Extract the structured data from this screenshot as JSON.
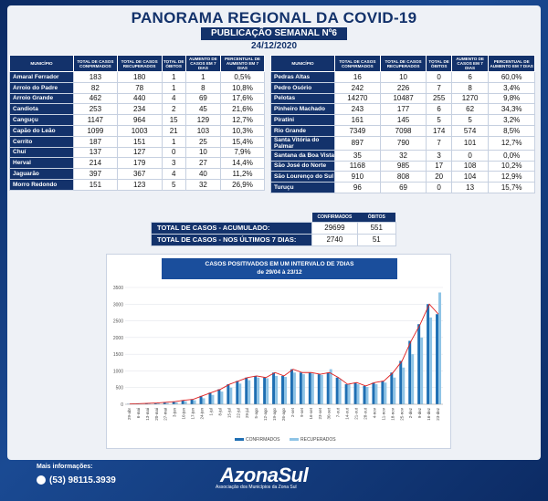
{
  "header": {
    "title": "PANORAMA REGIONAL DA COVID-19",
    "subtitle": "PUBLICAÇÃO SEMANAL Nº6",
    "date": "24/12/2020"
  },
  "columns": [
    "MUNICÍPIO",
    "TOTAL DE CASOS CONFIRMADOS",
    "TOTAL DE CASOS RECUPERADOS",
    "TOTAL DE ÓBITOS",
    "AUMENTO DE CASOS EM 7 DIAS",
    "PERCENTUAL DE AUMENTO EM 7 DIAS"
  ],
  "left_rows": [
    [
      "Amaral Ferrador",
      "183",
      "180",
      "1",
      "1",
      "0,5%"
    ],
    [
      "Arroio do Padre",
      "82",
      "78",
      "1",
      "8",
      "10,8%"
    ],
    [
      "Arroio Grande",
      "462",
      "440",
      "4",
      "69",
      "17,6%"
    ],
    [
      "Candiota",
      "253",
      "234",
      "2",
      "45",
      "21,6%"
    ],
    [
      "Canguçu",
      "1147",
      "964",
      "15",
      "129",
      "12,7%"
    ],
    [
      "Capão do Leão",
      "1099",
      "1003",
      "21",
      "103",
      "10,3%"
    ],
    [
      "Cerrito",
      "187",
      "151",
      "1",
      "25",
      "15,4%"
    ],
    [
      "Chuí",
      "137",
      "127",
      "0",
      "10",
      "7,9%"
    ],
    [
      "Herval",
      "214",
      "179",
      "3",
      "27",
      "14,4%"
    ],
    [
      "Jaguarão",
      "397",
      "367",
      "4",
      "40",
      "11,2%"
    ],
    [
      "Morro Redondo",
      "151",
      "123",
      "5",
      "32",
      "26,9%"
    ]
  ],
  "right_rows": [
    [
      "Pedras Altas",
      "16",
      "10",
      "0",
      "6",
      "60,0%"
    ],
    [
      "Pedro Osório",
      "242",
      "226",
      "7",
      "8",
      "3,4%"
    ],
    [
      "Pelotas",
      "14270",
      "10487",
      "255",
      "1270",
      "9,8%"
    ],
    [
      "Pinheiro Machado",
      "243",
      "177",
      "6",
      "62",
      "34,3%"
    ],
    [
      "Piratini",
      "161",
      "145",
      "5",
      "5",
      "3,2%"
    ],
    [
      "Rio Grande",
      "7349",
      "7098",
      "174",
      "574",
      "8,5%"
    ],
    [
      "Santa Vitória do Palmar",
      "897",
      "790",
      "7",
      "101",
      "12,7%"
    ],
    [
      "Santana da Boa Vista",
      "35",
      "32",
      "3",
      "0",
      "0,0%"
    ],
    [
      "São José do Norte",
      "1168",
      "985",
      "17",
      "108",
      "10,2%"
    ],
    [
      "São Lourenço do Sul",
      "910",
      "808",
      "20",
      "104",
      "12,9%"
    ],
    [
      "Turuçu",
      "96",
      "69",
      "0",
      "13",
      "15,7%"
    ]
  ],
  "summary": {
    "headers": [
      "CONFIRMADOS",
      "ÓBITOS"
    ],
    "rows": [
      {
        "label": "TOTAL DE CASOS - ACUMULADO:",
        "confirmed": "29699",
        "deaths": "551"
      },
      {
        "label": "TOTAL DE CASOS - NOS ÚLTIMOS 7 DIAS:",
        "confirmed": "2740",
        "deaths": "51"
      }
    ]
  },
  "chart_data": {
    "type": "bar",
    "title": "CASOS POSITIVADOS EM UM INTERVALO DE 7DIAS",
    "subtitle": "de 29/04 à 23/12",
    "categories": [
      "29-abr",
      "6-mai",
      "13-mai",
      "20-mai",
      "27-mai",
      "3-jun",
      "10-jun",
      "17-jun",
      "24-jun",
      "1-jul",
      "8-jul",
      "15-jul",
      "22-jul",
      "29-jul",
      "5-ago",
      "12-ago",
      "19-ago",
      "26-ago",
      "2-set",
      "9-set",
      "16-set",
      "23-set",
      "30-set",
      "7-out",
      "14-out",
      "21-out",
      "28-out",
      "4-nov",
      "11-nov",
      "18-nov",
      "25-nov",
      "2-dez",
      "9-dez",
      "16-dez",
      "23-dez"
    ],
    "x_tick_labels": [
      "29-abr",
      "6-mai",
      "13-mai",
      "20-mai",
      "27-mai",
      "3-jun",
      "10-jun",
      "17-jun",
      "24-jun",
      "1-jul",
      "8-jul",
      "15-jul",
      "22-jul",
      "29-jul",
      "5-ago",
      "12-ago",
      "19-ago",
      "26-ago",
      "2-set",
      "9-set",
      "16-set",
      "23-set",
      "30-set",
      "7-out",
      "14-out",
      "21-out",
      "28-out",
      "4-nov",
      "11-nov",
      "18-nov",
      "25-nov",
      "2-dez",
      "9-dez",
      "16-dez",
      "23-dez"
    ],
    "series": [
      {
        "name": "CONFIRMADOS",
        "color": "#1f6fb3",
        "values": [
          10,
          20,
          30,
          40,
          60,
          80,
          120,
          150,
          250,
          350,
          450,
          600,
          700,
          800,
          850,
          800,
          950,
          850,
          1050,
          950,
          950,
          900,
          950,
          800,
          600,
          650,
          550,
          650,
          700,
          950,
          1300,
          1900,
          2400,
          3000,
          2700
        ]
      },
      {
        "name": "RECUPERADOS",
        "color": "#8fc4e6",
        "values": [
          5,
          10,
          20,
          30,
          40,
          60,
          90,
          120,
          180,
          280,
          380,
          500,
          620,
          720,
          800,
          780,
          850,
          820,
          950,
          900,
          920,
          880,
          1050,
          750,
          600,
          600,
          520,
          600,
          650,
          800,
          1100,
          1500,
          2000,
          2600,
          3350
        ]
      }
    ],
    "trendline_color": "#e02020",
    "ylim": [
      0,
      3500
    ],
    "yticks": [
      0,
      500,
      1000,
      1500,
      2000,
      2500,
      3000,
      3500
    ],
    "legend_position": "bottom"
  },
  "footer": {
    "info_label": "Mais informações:",
    "phone": "(53) 98115.3939",
    "logo": "AzonaSul",
    "logo_sub": "Associação dos Municípios da Zona Sul"
  }
}
